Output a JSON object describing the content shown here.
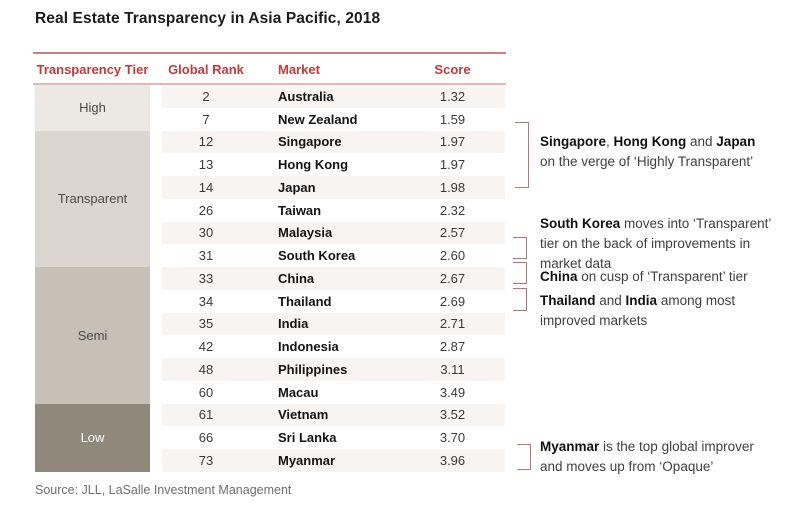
{
  "title": "Real Estate Transparency in Asia Pacific, 2018",
  "source": "Source: JLL, LaSalle Investment Management",
  "colors": {
    "header_red": "#c23a3a",
    "rule_top": "#cb827e",
    "rule_under": "#e3b7b4",
    "row_stripe": "#f8f4f1",
    "bracket": "#bd7474",
    "tier_high": "#ece9e4",
    "tier_transparent": "#dbd6cf",
    "tier_semi": "#c6c0b7",
    "tier_low": "#90897b"
  },
  "table": {
    "headers": {
      "tier": "Transparency Tier",
      "rank": "Global Rank",
      "market": "Market",
      "score": "Score"
    },
    "tiers": [
      {
        "label": "High",
        "rows": 2,
        "bg": "#ece9e4",
        "text": "#4a4a4a"
      },
      {
        "label": "Transparent",
        "rows": 6,
        "bg": "#dbd6cf",
        "text": "#4a4a4a"
      },
      {
        "label": "Semi",
        "rows": 6,
        "bg": "#c6c0b7",
        "text": "#4a4a4a"
      },
      {
        "label": "Low",
        "rows": 3,
        "bg": "#90897b",
        "text": "#ffffff"
      }
    ],
    "rows": [
      {
        "rank": "2",
        "market": "Australia",
        "score": "1.32"
      },
      {
        "rank": "7",
        "market": "New Zealand",
        "score": "1.59"
      },
      {
        "rank": "12",
        "market": "Singapore",
        "score": "1.97"
      },
      {
        "rank": "13",
        "market": "Hong Kong",
        "score": "1.97"
      },
      {
        "rank": "14",
        "market": "Japan",
        "score": "1.98"
      },
      {
        "rank": "26",
        "market": "Taiwan",
        "score": "2.32"
      },
      {
        "rank": "30",
        "market": "Malaysia",
        "score": "2.57"
      },
      {
        "rank": "31",
        "market": "South Korea",
        "score": "2.60"
      },
      {
        "rank": "33",
        "market": "China",
        "score": "2.67"
      },
      {
        "rank": "34",
        "market": "Thailand",
        "score": "2.69"
      },
      {
        "rank": "35",
        "market": "India",
        "score": "2.71"
      },
      {
        "rank": "42",
        "market": "Indonesia",
        "score": "2.87"
      },
      {
        "rank": "48",
        "market": "Philippines",
        "score": "3.11"
      },
      {
        "rank": "60",
        "market": "Macau",
        "score": "3.49"
      },
      {
        "rank": "61",
        "market": "Vietnam",
        "score": "3.52"
      },
      {
        "rank": "66",
        "market": "Sri Lanka",
        "score": "3.70"
      },
      {
        "rank": "73",
        "market": "Myanmar",
        "score": "3.96"
      }
    ]
  },
  "annotations": [
    {
      "lines": [
        [
          {
            "t": "Singapore",
            "b": 1
          },
          {
            "t": ", ",
            "b": 0
          },
          {
            "t": "Hong Kong",
            "b": 1
          },
          {
            "t": " and ",
            "b": 0
          },
          {
            "t": "Japan",
            "b": 1
          }
        ],
        [
          {
            "t": "on the verge of ‘Highly Transparent’",
            "b": 0
          }
        ]
      ]
    },
    {
      "lines": [
        [
          {
            "t": "South Korea",
            "b": 1
          },
          {
            "t": " moves into ‘Transparent’",
            "b": 0
          }
        ],
        [
          {
            "t": "tier on the back of improvements in",
            "b": 0
          }
        ],
        [
          {
            "t": "market data",
            "b": 0
          }
        ]
      ]
    },
    {
      "lines": [
        [
          {
            "t": "China",
            "b": 1
          },
          {
            "t": " on cusp of ‘Transparent’ tier",
            "b": 0
          }
        ]
      ]
    },
    {
      "lines": [
        [
          {
            "t": "Thailand",
            "b": 1
          },
          {
            "t": " and ",
            "b": 0
          },
          {
            "t": "India",
            "b": 1
          },
          {
            "t": " among most",
            "b": 0
          }
        ],
        [
          {
            "t": "improved markets",
            "b": 0
          }
        ]
      ]
    },
    {
      "lines": [
        [
          {
            "t": "Myanmar",
            "b": 1
          },
          {
            "t": " is the top global improver",
            "b": 0
          }
        ],
        [
          {
            "t": "and moves up from ‘Opaque’",
            "b": 0
          }
        ]
      ]
    }
  ],
  "chart_data": {
    "type": "table",
    "title": "Real Estate Transparency in Asia Pacific, 2018",
    "columns": [
      "Transparency Tier",
      "Global Rank",
      "Market",
      "Score"
    ],
    "rows": [
      [
        "High",
        2,
        "Australia",
        1.32
      ],
      [
        "High",
        7,
        "New Zealand",
        1.59
      ],
      [
        "Transparent",
        12,
        "Singapore",
        1.97
      ],
      [
        "Transparent",
        13,
        "Hong Kong",
        1.97
      ],
      [
        "Transparent",
        14,
        "Japan",
        1.98
      ],
      [
        "Transparent",
        26,
        "Taiwan",
        2.32
      ],
      [
        "Transparent",
        30,
        "Malaysia",
        2.57
      ],
      [
        "Transparent",
        31,
        "South Korea",
        2.6
      ],
      [
        "Semi",
        33,
        "China",
        2.67
      ],
      [
        "Semi",
        34,
        "Thailand",
        2.69
      ],
      [
        "Semi",
        35,
        "India",
        2.71
      ],
      [
        "Semi",
        42,
        "Indonesia",
        2.87
      ],
      [
        "Semi",
        48,
        "Philippines",
        3.11
      ],
      [
        "Semi",
        60,
        "Macau",
        3.49
      ],
      [
        "Low",
        61,
        "Vietnam",
        3.52
      ],
      [
        "Low",
        66,
        "Sri Lanka",
        3.7
      ],
      [
        "Low",
        73,
        "Myanmar",
        3.96
      ]
    ],
    "source": "Source: JLL, LaSalle Investment Management"
  }
}
